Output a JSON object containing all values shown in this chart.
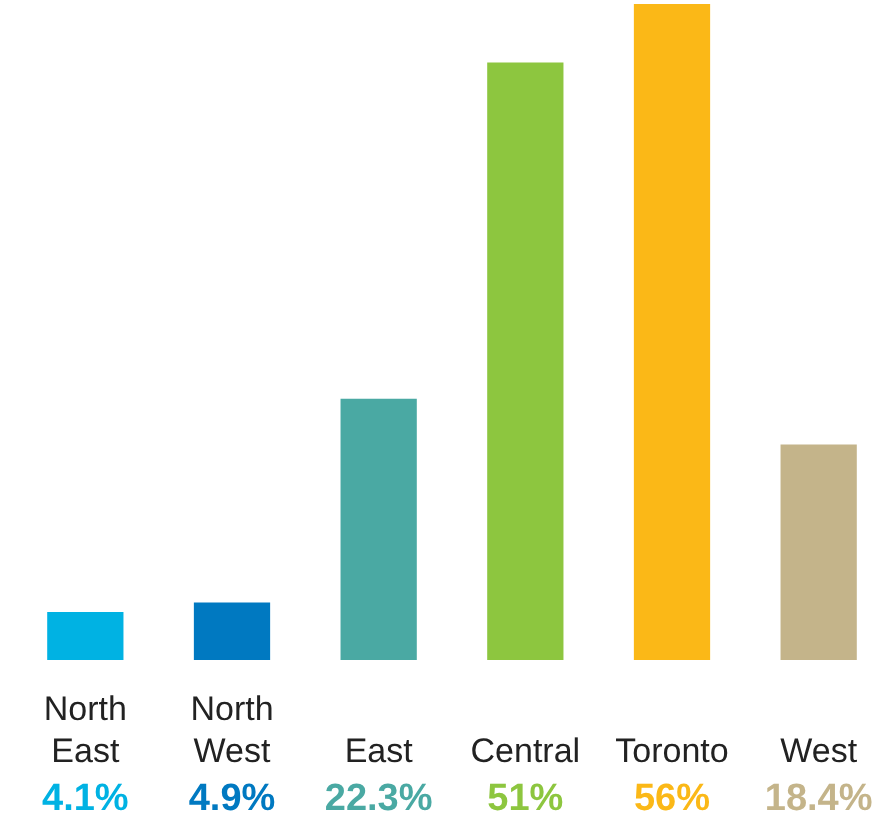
{
  "chart_data": {
    "type": "bar",
    "categories": [
      "North East",
      "North West",
      "East",
      "Central",
      "Toronto",
      "West"
    ],
    "values": [
      4.1,
      4.9,
      22.3,
      51,
      56,
      18.4
    ],
    "colors": [
      "#00b2e3",
      "#0079c1",
      "#4aa9a3",
      "#8dc63f",
      "#fbb817",
      "#c4b48a"
    ],
    "value_labels": [
      "4.1%",
      "4.9%",
      "22.3%",
      "51%",
      "56%",
      "18.4%"
    ],
    "grid": false,
    "legend": false
  }
}
